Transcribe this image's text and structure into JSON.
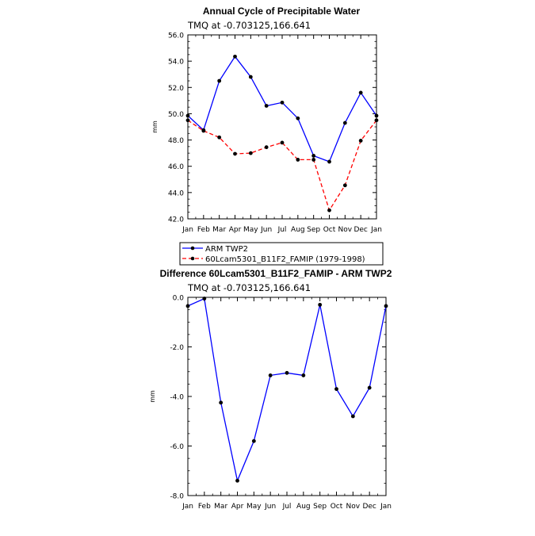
{
  "chart_data": [
    {
      "type": "line",
      "title": "Annual Cycle of Precipitable Water",
      "subtitle": "TMQ at -0.703125,166.641",
      "xlabel": "",
      "ylabel": "mm",
      "categories": [
        "Jan",
        "Feb",
        "Mar",
        "Apr",
        "May",
        "Jun",
        "Jul",
        "Aug",
        "Sep",
        "Oct",
        "Nov",
        "Dec",
        "Jan"
      ],
      "ylim": [
        42.0,
        56.0
      ],
      "yticks": [
        "42.0",
        "44.0",
        "46.0",
        "48.0",
        "50.0",
        "52.0",
        "54.0",
        "56.0"
      ],
      "grid": false,
      "series": [
        {
          "name": "ARM TWP2",
          "color": "#0000ff",
          "dash": false,
          "values": [
            49.85,
            48.75,
            52.5,
            54.35,
            52.8,
            50.6,
            50.85,
            49.65,
            46.8,
            46.35,
            49.3,
            51.6,
            49.85
          ]
        },
        {
          "name": "60Lcam5301_B11F2_FAMIP (1979-1998)",
          "color": "#ff0000",
          "dash": true,
          "values": [
            49.5,
            48.7,
            48.2,
            46.95,
            47.0,
            47.45,
            47.8,
            46.5,
            46.5,
            42.65,
            44.55,
            47.95,
            49.5
          ]
        }
      ],
      "legend_placement": "below"
    },
    {
      "type": "line",
      "title": "Difference 60Lcam5301_B11F2_FAMIP - ARM TWP2",
      "subtitle": "TMQ at -0.703125,166.641",
      "xlabel": "",
      "ylabel": "mm",
      "categories": [
        "Jan",
        "Feb",
        "Mar",
        "Apr",
        "May",
        "Jun",
        "Jul",
        "Aug",
        "Sep",
        "Oct",
        "Nov",
        "Dec",
        "Jan"
      ],
      "ylim": [
        -8.0,
        0.0
      ],
      "yticks": [
        "-8.0",
        "-6.0",
        "-4.0",
        "-2.0",
        "0.0"
      ],
      "grid": false,
      "series": [
        {
          "name": "",
          "color": "#0000ff",
          "dash": false,
          "values": [
            -0.35,
            -0.05,
            -4.25,
            -7.4,
            -5.8,
            -3.15,
            -3.05,
            -3.15,
            -0.3,
            -3.7,
            -4.8,
            -3.65,
            -0.35
          ]
        }
      ]
    }
  ]
}
